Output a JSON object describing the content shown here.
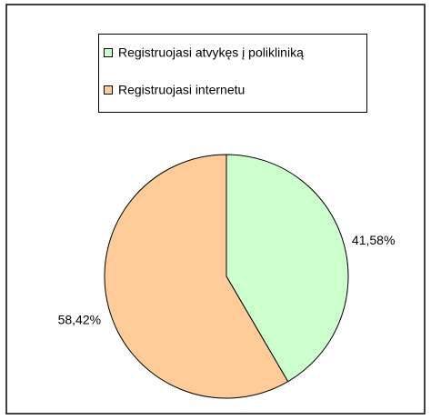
{
  "chart_data": {
    "type": "pie",
    "categories": [
      "Registruojasi atvykęs į polikliniką",
      "Registruojasi internetu"
    ],
    "values": [
      41.58,
      58.42
    ],
    "value_labels": [
      "41,58%",
      "58,42%"
    ],
    "colors": [
      "#ccffcc",
      "#ffcc99"
    ],
    "legend": "top"
  }
}
